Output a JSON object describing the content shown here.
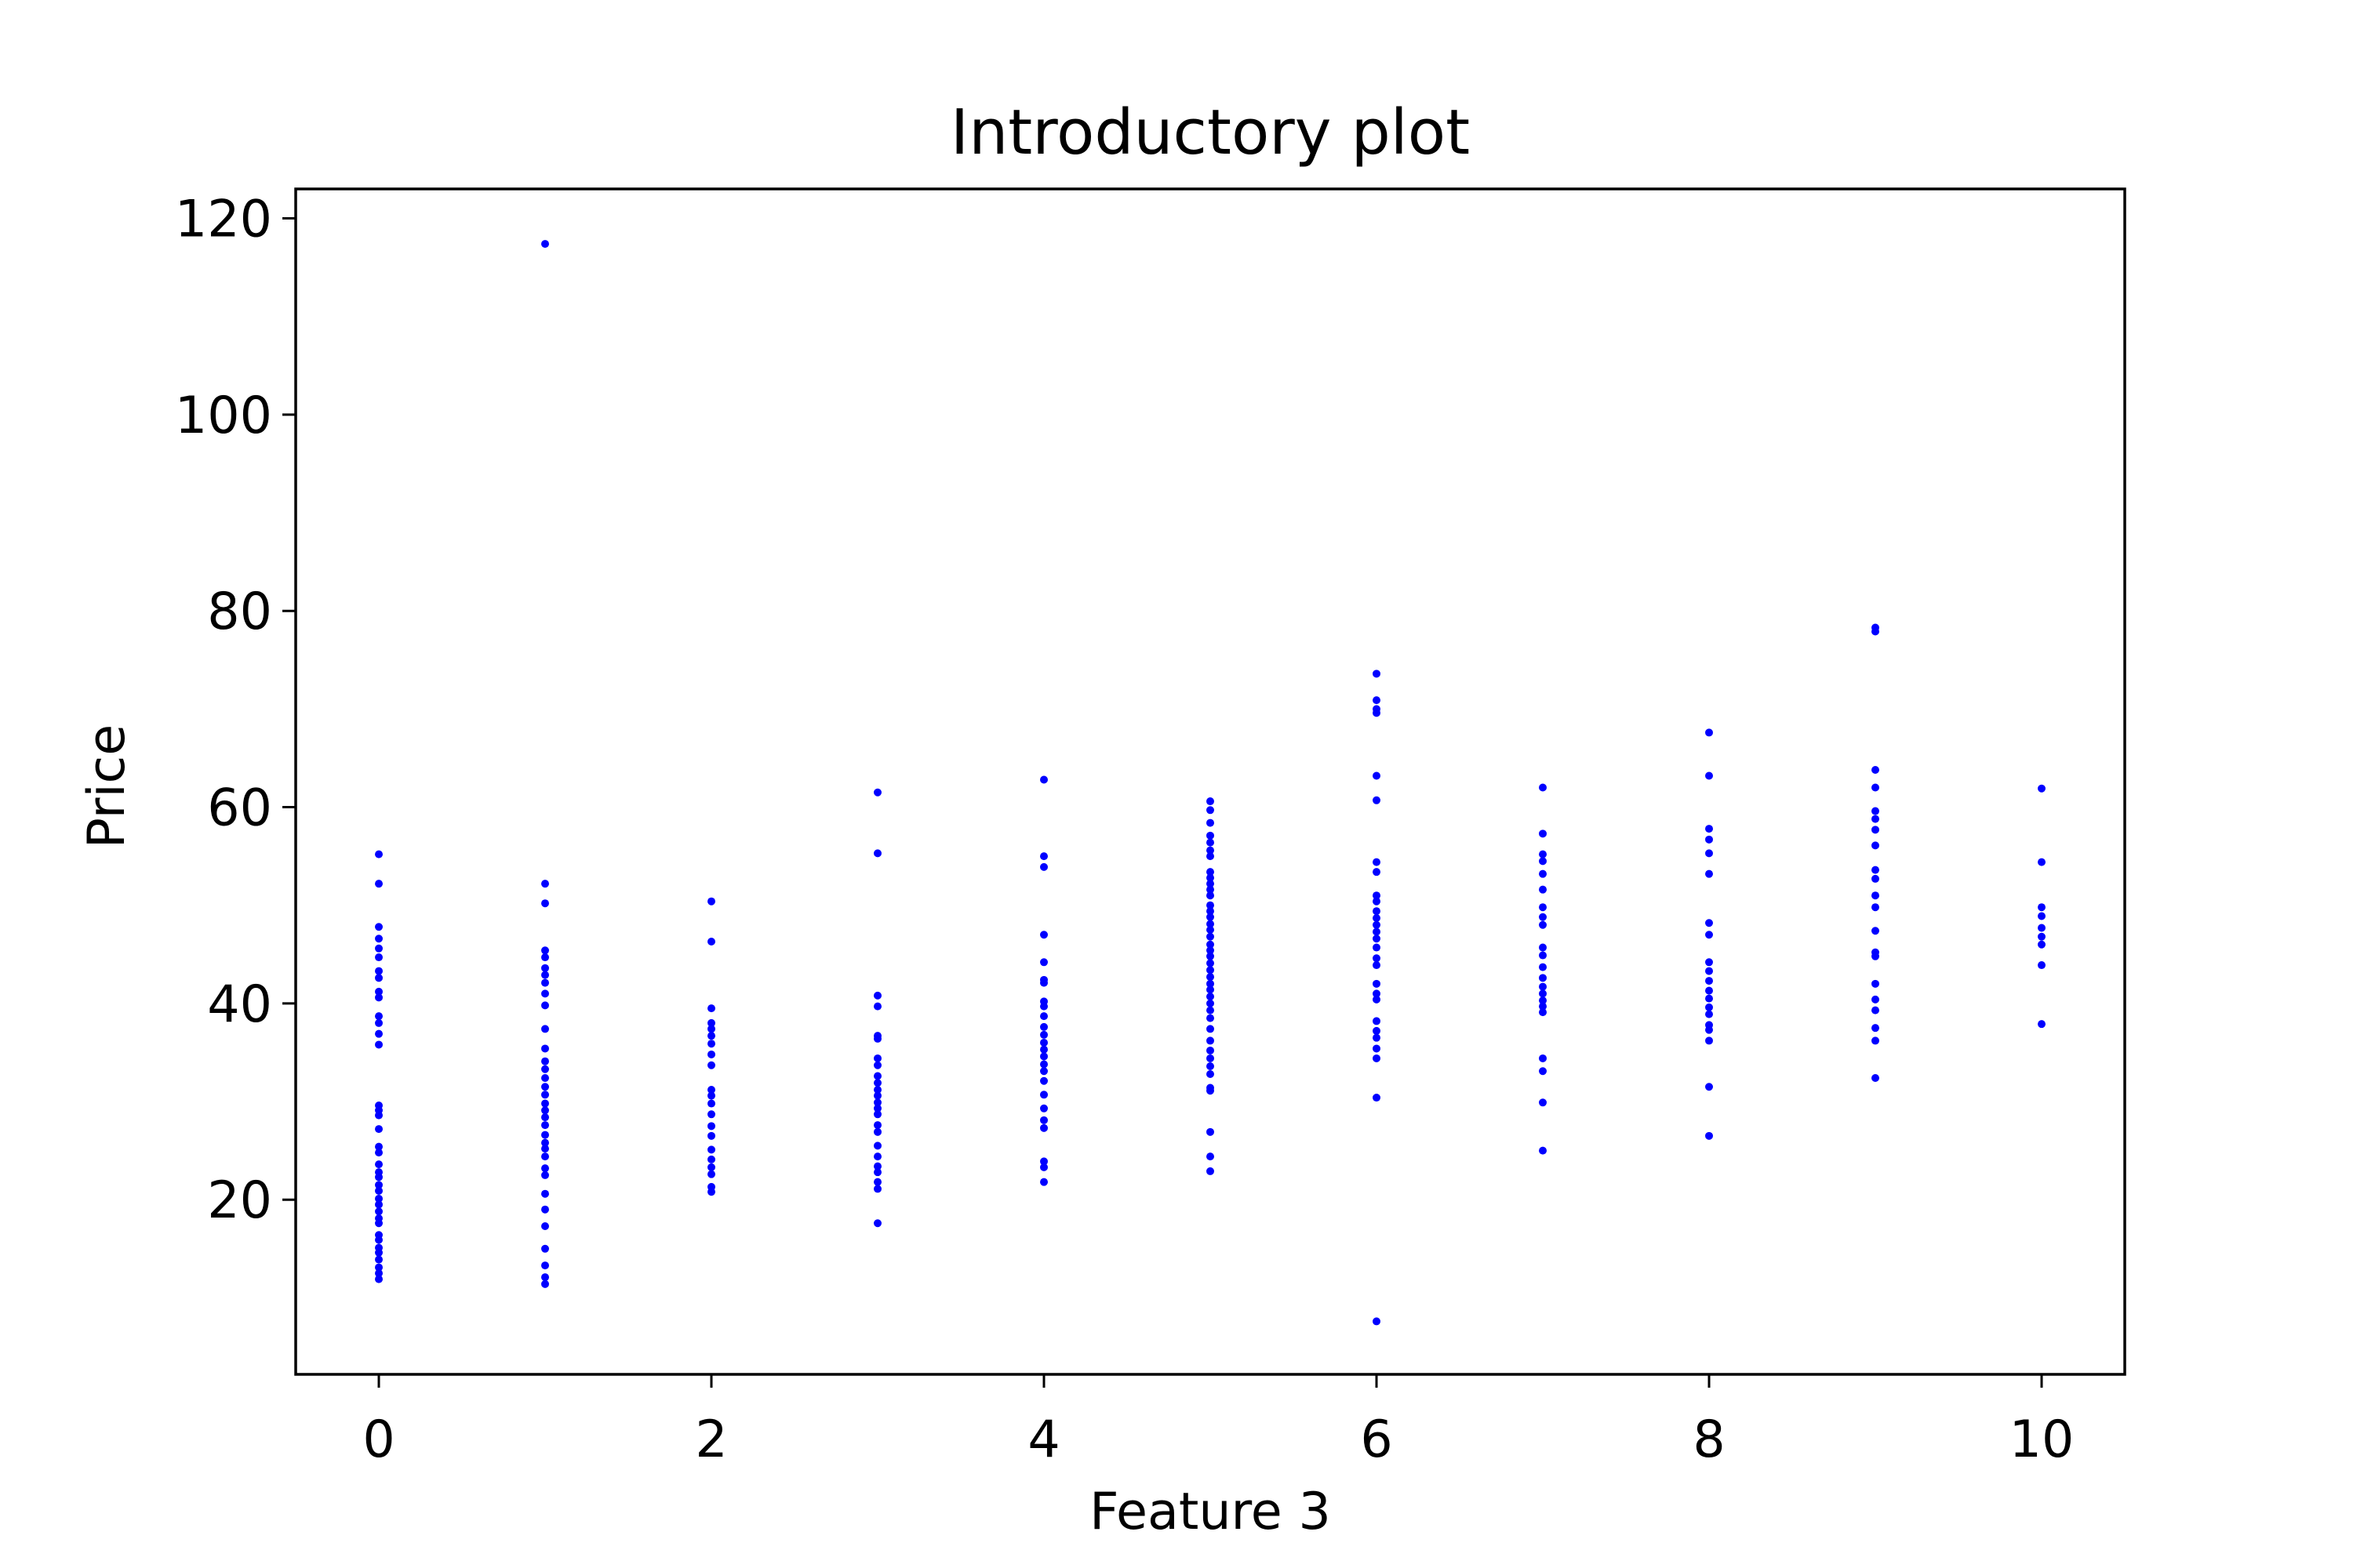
{
  "chart_data": {
    "type": "scatter",
    "title": "Introductory plot",
    "xlabel": "Feature 3",
    "ylabel": "Price",
    "xlim": [
      -0.5,
      10.5
    ],
    "ylim": [
      2.2,
      123.0
    ],
    "xticks": [
      0,
      2,
      4,
      6,
      8,
      10
    ],
    "yticks": [
      20,
      40,
      60,
      80,
      100,
      120
    ],
    "grid": false,
    "legend": "none",
    "colors": {
      "points": "#0000ff",
      "axes": "#000000",
      "background": "#ffffff"
    },
    "series": [
      {
        "points": [
          [
            0,
            55.2
          ],
          [
            0,
            52.2
          ],
          [
            0,
            47.8
          ],
          [
            0,
            46.6
          ],
          [
            0,
            45.6
          ],
          [
            0,
            44.7
          ],
          [
            0,
            43.3
          ],
          [
            0,
            42.6
          ],
          [
            0,
            41.2
          ],
          [
            0,
            40.6
          ],
          [
            0,
            38.7
          ],
          [
            0,
            38.0
          ],
          [
            0,
            36.9
          ],
          [
            0,
            35.8
          ],
          [
            0,
            29.6
          ],
          [
            0,
            29.1
          ],
          [
            0,
            28.6
          ],
          [
            0,
            27.2
          ],
          [
            0,
            25.4
          ],
          [
            0,
            24.8
          ],
          [
            0,
            23.6
          ],
          [
            0,
            22.8
          ],
          [
            0,
            22.3
          ],
          [
            0,
            21.5
          ],
          [
            0,
            20.9
          ],
          [
            0,
            20.1
          ],
          [
            0,
            19.5
          ],
          [
            0,
            18.8
          ],
          [
            0,
            18.1
          ],
          [
            0,
            17.6
          ],
          [
            0,
            16.4
          ],
          [
            0,
            15.9
          ],
          [
            0,
            15.1
          ],
          [
            0,
            14.6
          ],
          [
            0,
            13.9
          ],
          [
            0,
            13.1
          ],
          [
            0,
            12.5
          ],
          [
            0,
            11.9
          ],
          [
            1,
            117.4
          ],
          [
            1,
            52.2
          ],
          [
            1,
            50.2
          ],
          [
            1,
            45.4
          ],
          [
            1,
            44.7
          ],
          [
            1,
            43.6
          ],
          [
            1,
            42.9
          ],
          [
            1,
            42.1
          ],
          [
            1,
            41.0
          ],
          [
            1,
            39.8
          ],
          [
            1,
            37.4
          ],
          [
            1,
            35.4
          ],
          [
            1,
            34.1
          ],
          [
            1,
            33.3
          ],
          [
            1,
            32.4
          ],
          [
            1,
            31.5
          ],
          [
            1,
            30.7
          ],
          [
            1,
            29.8
          ],
          [
            1,
            29.1
          ],
          [
            1,
            28.4
          ],
          [
            1,
            27.6
          ],
          [
            1,
            26.6
          ],
          [
            1,
            25.8
          ],
          [
            1,
            25.2
          ],
          [
            1,
            24.4
          ],
          [
            1,
            23.2
          ],
          [
            1,
            22.5
          ],
          [
            1,
            20.6
          ],
          [
            1,
            19.0
          ],
          [
            1,
            17.3
          ],
          [
            1,
            15.0
          ],
          [
            1,
            13.3
          ],
          [
            1,
            12.1
          ],
          [
            1,
            11.4
          ],
          [
            2,
            50.4
          ],
          [
            2,
            46.3
          ],
          [
            2,
            39.5
          ],
          [
            2,
            38.0
          ],
          [
            2,
            37.4
          ],
          [
            2,
            36.7
          ],
          [
            2,
            35.9
          ],
          [
            2,
            34.8
          ],
          [
            2,
            33.7
          ],
          [
            2,
            31.2
          ],
          [
            2,
            30.6
          ],
          [
            2,
            29.8
          ],
          [
            2,
            28.7
          ],
          [
            2,
            27.5
          ],
          [
            2,
            26.5
          ],
          [
            2,
            25.1
          ],
          [
            2,
            24.1
          ],
          [
            2,
            23.3
          ],
          [
            2,
            22.6
          ],
          [
            2,
            21.3
          ],
          [
            2,
            20.8
          ],
          [
            3,
            61.5
          ],
          [
            3,
            55.3
          ],
          [
            3,
            40.8
          ],
          [
            3,
            39.7
          ],
          [
            3,
            36.7
          ],
          [
            3,
            36.4
          ],
          [
            3,
            34.4
          ],
          [
            3,
            33.7
          ],
          [
            3,
            32.6
          ],
          [
            3,
            31.9
          ],
          [
            3,
            31.2
          ],
          [
            3,
            30.6
          ],
          [
            3,
            29.9
          ],
          [
            3,
            29.3
          ],
          [
            3,
            28.7
          ],
          [
            3,
            27.6
          ],
          [
            3,
            26.9
          ],
          [
            3,
            25.5
          ],
          [
            3,
            24.4
          ],
          [
            3,
            23.4
          ],
          [
            3,
            22.8
          ],
          [
            3,
            21.8
          ],
          [
            3,
            21.1
          ],
          [
            3,
            17.6
          ],
          [
            4,
            62.8
          ],
          [
            4,
            55.0
          ],
          [
            4,
            53.9
          ],
          [
            4,
            47.0
          ],
          [
            4,
            44.2
          ],
          [
            4,
            42.4
          ],
          [
            4,
            42.1
          ],
          [
            4,
            40.2
          ],
          [
            4,
            39.7
          ],
          [
            4,
            38.7
          ],
          [
            4,
            37.6
          ],
          [
            4,
            36.8
          ],
          [
            4,
            36.0
          ],
          [
            4,
            35.3
          ],
          [
            4,
            34.6
          ],
          [
            4,
            33.8
          ],
          [
            4,
            33.1
          ],
          [
            4,
            32.1
          ],
          [
            4,
            30.7
          ],
          [
            4,
            29.3
          ],
          [
            4,
            28.1
          ],
          [
            4,
            27.3
          ],
          [
            4,
            23.9
          ],
          [
            4,
            23.3
          ],
          [
            4,
            21.8
          ],
          [
            5,
            60.6
          ],
          [
            5,
            59.7
          ],
          [
            5,
            58.4
          ],
          [
            5,
            57.1
          ],
          [
            5,
            56.4
          ],
          [
            5,
            55.6
          ],
          [
            5,
            55.0
          ],
          [
            5,
            53.4
          ],
          [
            5,
            52.8
          ],
          [
            5,
            52.2
          ],
          [
            5,
            51.6
          ],
          [
            5,
            51.0
          ],
          [
            5,
            50.0
          ],
          [
            5,
            49.4
          ],
          [
            5,
            48.8
          ],
          [
            5,
            48.1
          ],
          [
            5,
            47.5
          ],
          [
            5,
            46.8
          ],
          [
            5,
            46.0
          ],
          [
            5,
            45.4
          ],
          [
            5,
            44.8
          ],
          [
            5,
            44.1
          ],
          [
            5,
            43.4
          ],
          [
            5,
            42.7
          ],
          [
            5,
            42.0
          ],
          [
            5,
            41.4
          ],
          [
            5,
            40.7
          ],
          [
            5,
            40.0
          ],
          [
            5,
            39.3
          ],
          [
            5,
            38.5
          ],
          [
            5,
            37.4
          ],
          [
            5,
            36.2
          ],
          [
            5,
            35.2
          ],
          [
            5,
            34.4
          ],
          [
            5,
            33.6
          ],
          [
            5,
            32.8
          ],
          [
            5,
            31.4
          ],
          [
            5,
            31.1
          ],
          [
            5,
            26.9
          ],
          [
            5,
            24.4
          ],
          [
            5,
            22.9
          ],
          [
            6,
            73.6
          ],
          [
            6,
            70.9
          ],
          [
            6,
            70.0
          ],
          [
            6,
            69.6
          ],
          [
            6,
            63.2
          ],
          [
            6,
            60.7
          ],
          [
            6,
            54.4
          ],
          [
            6,
            53.4
          ],
          [
            6,
            51.0
          ],
          [
            6,
            50.4
          ],
          [
            6,
            49.4
          ],
          [
            6,
            48.7
          ],
          [
            6,
            48.0
          ],
          [
            6,
            47.3
          ],
          [
            6,
            46.6
          ],
          [
            6,
            45.7
          ],
          [
            6,
            44.6
          ],
          [
            6,
            43.9
          ],
          [
            6,
            42.0
          ],
          [
            6,
            41.0
          ],
          [
            6,
            40.4
          ],
          [
            6,
            38.2
          ],
          [
            6,
            37.2
          ],
          [
            6,
            36.5
          ],
          [
            6,
            35.4
          ],
          [
            6,
            34.4
          ],
          [
            6,
            30.4
          ],
          [
            6,
            7.6
          ],
          [
            7,
            62.0
          ],
          [
            7,
            57.3
          ],
          [
            7,
            55.2
          ],
          [
            7,
            54.5
          ],
          [
            7,
            53.2
          ],
          [
            7,
            51.6
          ],
          [
            7,
            49.8
          ],
          [
            7,
            48.8
          ],
          [
            7,
            48.0
          ],
          [
            7,
            45.7
          ],
          [
            7,
            44.9
          ],
          [
            7,
            43.7
          ],
          [
            7,
            42.6
          ],
          [
            7,
            41.7
          ],
          [
            7,
            41.0
          ],
          [
            7,
            40.3
          ],
          [
            7,
            39.7
          ],
          [
            7,
            39.1
          ],
          [
            7,
            34.4
          ],
          [
            7,
            33.1
          ],
          [
            7,
            29.9
          ],
          [
            7,
            25.0
          ],
          [
            8,
            67.6
          ],
          [
            8,
            63.2
          ],
          [
            8,
            57.8
          ],
          [
            8,
            56.7
          ],
          [
            8,
            55.3
          ],
          [
            8,
            53.2
          ],
          [
            8,
            48.2
          ],
          [
            8,
            47.0
          ],
          [
            8,
            44.2
          ],
          [
            8,
            43.3
          ],
          [
            8,
            42.3
          ],
          [
            8,
            41.3
          ],
          [
            8,
            40.5
          ],
          [
            8,
            39.6
          ],
          [
            8,
            38.9
          ],
          [
            8,
            37.8
          ],
          [
            8,
            37.3
          ],
          [
            8,
            36.2
          ],
          [
            8,
            31.5
          ],
          [
            8,
            26.5
          ],
          [
            9,
            78.3
          ],
          [
            9,
            77.9
          ],
          [
            9,
            63.8
          ],
          [
            9,
            62.0
          ],
          [
            9,
            59.6
          ],
          [
            9,
            58.8
          ],
          [
            9,
            57.7
          ],
          [
            9,
            56.1
          ],
          [
            9,
            53.6
          ],
          [
            9,
            52.7
          ],
          [
            9,
            51.0
          ],
          [
            9,
            49.8
          ],
          [
            9,
            47.4
          ],
          [
            9,
            45.2
          ],
          [
            9,
            44.8
          ],
          [
            9,
            42.0
          ],
          [
            9,
            40.4
          ],
          [
            9,
            39.3
          ],
          [
            9,
            37.5
          ],
          [
            9,
            36.2
          ],
          [
            9,
            32.4
          ],
          [
            10,
            61.9
          ],
          [
            10,
            54.4
          ],
          [
            10,
            49.8
          ],
          [
            10,
            48.9
          ],
          [
            10,
            47.7
          ],
          [
            10,
            46.8
          ],
          [
            10,
            46.0
          ],
          [
            10,
            43.9
          ],
          [
            10,
            37.9
          ]
        ]
      }
    ]
  }
}
